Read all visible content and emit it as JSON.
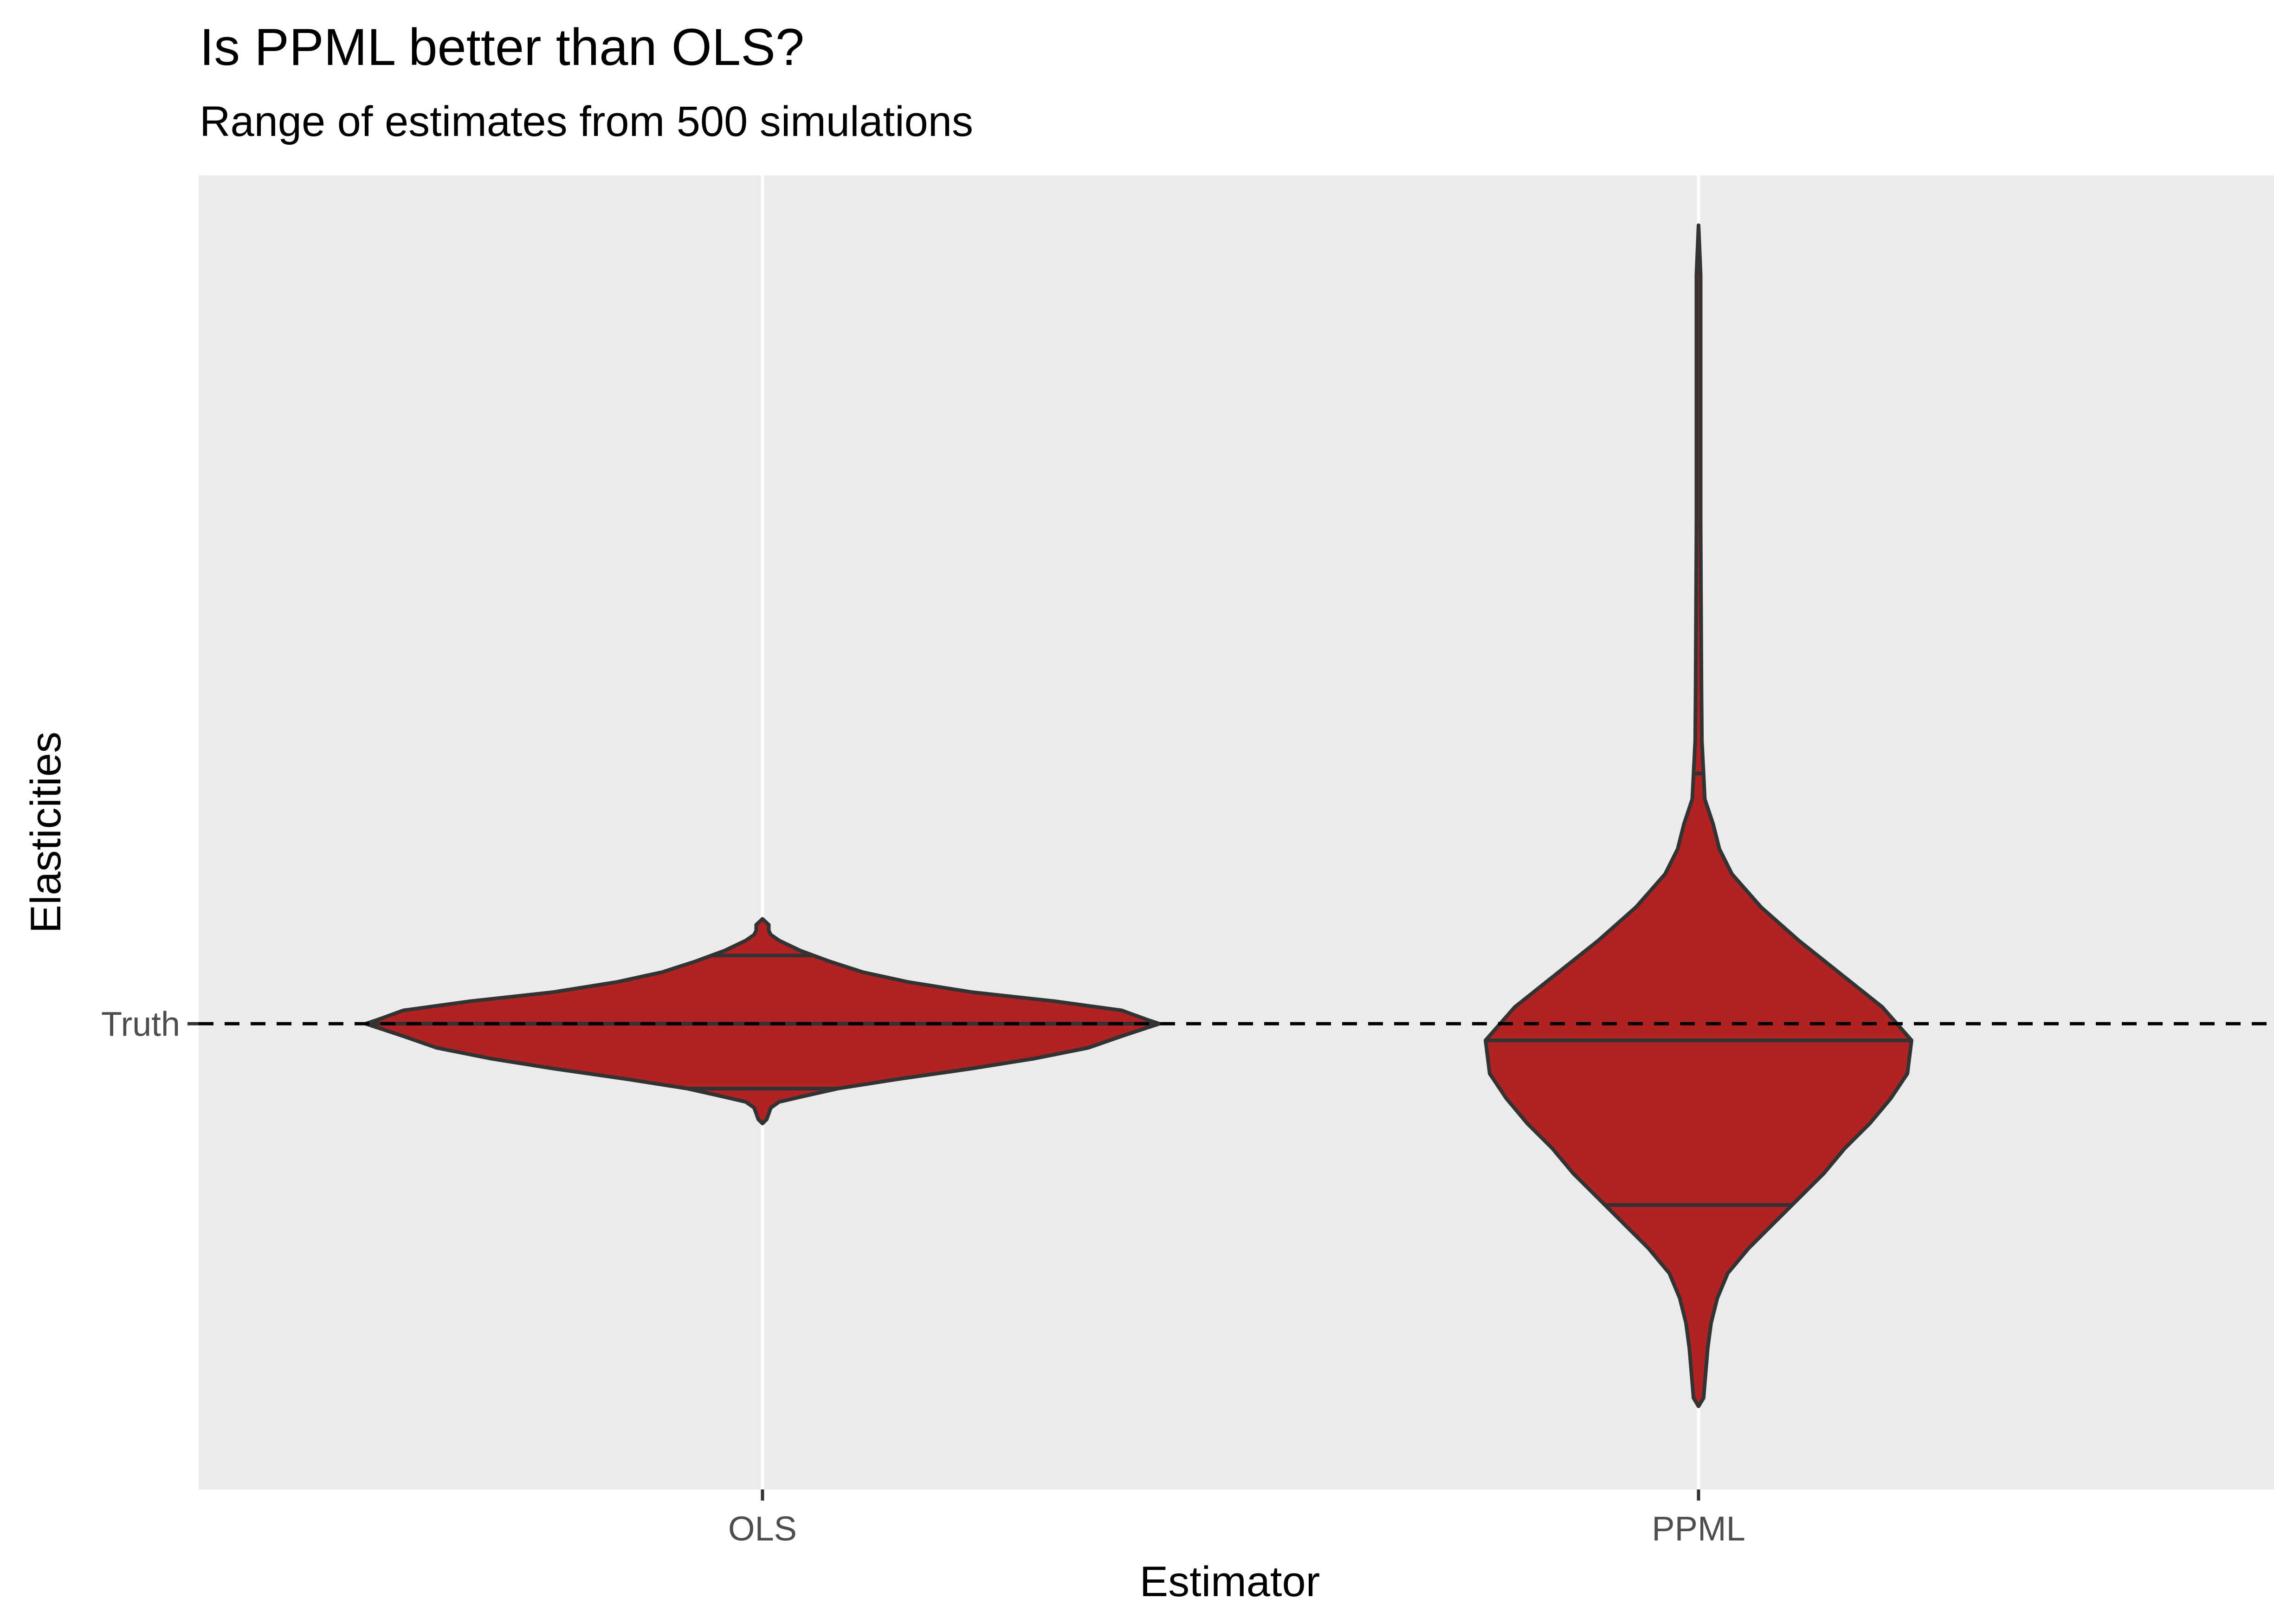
{
  "chart_data": {
    "type": "violin",
    "title": "Is PPML better than OLS?",
    "subtitle": "Range of estimates from 500 simulations",
    "xlabel": "Estimator",
    "ylabel": "Elasticities",
    "categories": [
      "OLS",
      "PPML"
    ],
    "y_tick_labels": [
      {
        "label": "Truth",
        "value": 1.0
      }
    ],
    "reference_line": {
      "label": "Truth",
      "value": 1.0,
      "style": "dashed",
      "color": "#000000"
    },
    "ylim": [
      0.44,
      2.02
    ],
    "grid": "vertical major only",
    "background_color": "#EBEBEB",
    "fill_color": "#B22222",
    "outline_color": "#333333",
    "series": [
      {
        "name": "OLS",
        "min": 0.88,
        "max": 1.126,
        "quantiles": [
          0.922,
          1.0,
          1.082
        ],
        "density_profile": [
          [
            0.88,
            0.0
          ],
          [
            0.885,
            0.01
          ],
          [
            0.892,
            0.015
          ],
          [
            0.899,
            0.02
          ],
          [
            0.906,
            0.04
          ],
          [
            0.913,
            0.1
          ],
          [
            0.922,
            0.18
          ],
          [
            0.933,
            0.32
          ],
          [
            0.946,
            0.5
          ],
          [
            0.958,
            0.65
          ],
          [
            0.971,
            0.78
          ],
          [
            0.985,
            0.86
          ],
          [
            0.995,
            0.92
          ],
          [
            1.0,
            0.95
          ],
          [
            1.005,
            0.92
          ],
          [
            1.016,
            0.86
          ],
          [
            1.027,
            0.7
          ],
          [
            1.038,
            0.5
          ],
          [
            1.05,
            0.35
          ],
          [
            1.062,
            0.24
          ],
          [
            1.075,
            0.16
          ],
          [
            1.088,
            0.09
          ],
          [
            1.1,
            0.04
          ],
          [
            1.107,
            0.02
          ],
          [
            1.112,
            0.015
          ],
          [
            1.119,
            0.015
          ],
          [
            1.126,
            0.0
          ]
        ]
      },
      {
        "name": "PPML",
        "min": 0.54,
        "max": 1.96,
        "quantiles": [
          0.782,
          0.98,
          1.301
        ],
        "density_profile": [
          [
            0.54,
            0.0
          ],
          [
            0.55,
            0.012
          ],
          [
            0.58,
            0.017
          ],
          [
            0.61,
            0.022
          ],
          [
            0.64,
            0.03
          ],
          [
            0.67,
            0.045
          ],
          [
            0.7,
            0.07
          ],
          [
            0.73,
            0.12
          ],
          [
            0.76,
            0.18
          ],
          [
            0.79,
            0.24
          ],
          [
            0.82,
            0.3
          ],
          [
            0.85,
            0.35
          ],
          [
            0.88,
            0.41
          ],
          [
            0.91,
            0.46
          ],
          [
            0.94,
            0.5
          ],
          [
            0.98,
            0.51
          ],
          [
            1.02,
            0.44
          ],
          [
            1.06,
            0.34
          ],
          [
            1.1,
            0.24
          ],
          [
            1.14,
            0.15
          ],
          [
            1.18,
            0.08
          ],
          [
            1.21,
            0.05
          ],
          [
            1.24,
            0.035
          ],
          [
            1.27,
            0.015
          ],
          [
            1.3,
            0.012
          ],
          [
            1.34,
            0.008
          ],
          [
            1.4,
            0.007
          ],
          [
            1.5,
            0.006
          ],
          [
            1.6,
            0.005
          ],
          [
            1.7,
            0.005
          ],
          [
            1.8,
            0.005
          ],
          [
            1.9,
            0.005
          ],
          [
            1.96,
            0.0
          ]
        ]
      }
    ]
  }
}
